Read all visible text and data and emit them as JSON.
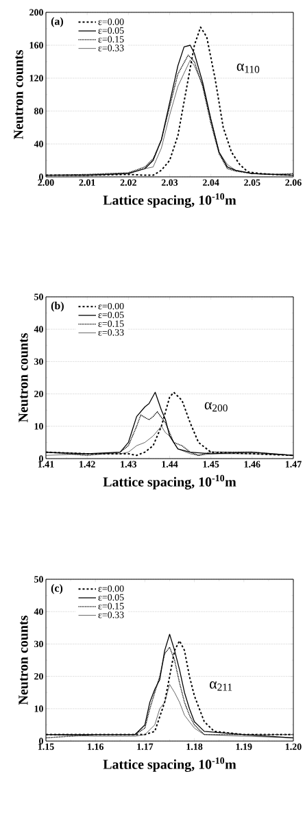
{
  "chart_data": [
    {
      "type": "line",
      "xlabel": "Lattice spacing, 10$^{-10}$m",
      "ylabel": "Neutron counts",
      "xlim": [
        2.0,
        2.06
      ],
      "xticks": [
        {
          "value": 2.0,
          "label": "2.00"
        },
        {
          "value": 2.01,
          "label": "2.01"
        },
        {
          "value": 2.02,
          "label": "2.02"
        },
        {
          "value": 2.03,
          "label": "2.03"
        },
        {
          "value": 2.04,
          "label": "2.04"
        },
        {
          "value": 2.05,
          "label": "2.05"
        },
        {
          "value": 2.06,
          "label": "2.06"
        }
      ],
      "ylim": [
        0,
        200
      ],
      "yticks": [
        0,
        40,
        80,
        120,
        160,
        200
      ],
      "grid": "y",
      "legend": "top left",
      "marker": "none",
      "annotations": [
        "(a)",
        "α$_{110}$"
      ],
      "series": [
        {
          "name": "ε=0.00",
          "color": "#000000",
          "line_style": "dashed",
          "x": [
            2.0,
            2.01,
            2.02,
            2.024,
            2.026,
            2.028,
            2.03,
            2.032,
            2.034,
            2.036,
            2.0375,
            2.039,
            2.041,
            2.043,
            2.045,
            2.047,
            2.049,
            2.052,
            2.055,
            2.06
          ],
          "values": [
            2,
            2,
            3,
            2,
            2,
            8,
            20,
            50,
            105,
            160,
            182,
            170,
            120,
            60,
            30,
            15,
            6,
            4,
            3,
            2
          ]
        },
        {
          "name": "ε=0.05",
          "color": "#000000",
          "line_style": "solid",
          "x": [
            2.0,
            2.01,
            2.02,
            2.024,
            2.026,
            2.028,
            2.03,
            2.032,
            2.0335,
            2.035,
            2.036,
            2.038,
            2.04,
            2.042,
            2.044,
            2.046,
            2.05,
            2.055,
            2.06
          ],
          "values": [
            2,
            2,
            4,
            10,
            20,
            45,
            90,
            135,
            158,
            160,
            150,
            115,
            70,
            30,
            12,
            8,
            4,
            3,
            2
          ]
        },
        {
          "name": "ε=0.15",
          "color": "#000000",
          "line_style": "dotted",
          "x": [
            2.0,
            2.01,
            2.02,
            2.024,
            2.026,
            2.028,
            2.03,
            2.032,
            2.0345,
            2.036,
            2.038,
            2.04,
            2.042,
            2.044,
            2.046,
            2.05,
            2.055,
            2.06
          ],
          "values": [
            2,
            3,
            5,
            12,
            22,
            45,
            85,
            125,
            148,
            140,
            110,
            65,
            28,
            10,
            7,
            4,
            3,
            4
          ]
        },
        {
          "name": "ε=0.33",
          "color": "#000000",
          "line_style": "solid",
          "x": [
            2.0,
            2.01,
            2.02,
            2.024,
            2.026,
            2.028,
            2.03,
            2.032,
            2.035,
            2.036,
            2.038,
            2.04,
            2.042,
            2.044,
            2.046,
            2.05,
            2.055,
            2.06
          ],
          "values": [
            2,
            2,
            4,
            10,
            12,
            35,
            75,
            110,
            142,
            135,
            112,
            70,
            30,
            15,
            8,
            4,
            3,
            2
          ]
        }
      ]
    },
    {
      "type": "line",
      "xlabel": "Lattice spacing, 10$^{-10}$m",
      "ylabel": "Neutron counts",
      "xlim": [
        1.41,
        1.47
      ],
      "xticks": [
        1.41,
        1.42,
        1.43,
        1.44,
        1.45,
        1.46,
        1.47
      ],
      "ylim": [
        0,
        50
      ],
      "yticks": [
        0,
        10,
        20,
        30,
        40,
        50
      ],
      "grid": "y",
      "legend": "top left",
      "marker": "none",
      "annotations": [
        "(b)",
        "α$_{200}$"
      ],
      "series": [
        {
          "name": "ε=0.00",
          "color": "#000000",
          "line_style": "dashed",
          "x": [
            1.41,
            1.42,
            1.43,
            1.432,
            1.434,
            1.436,
            1.438,
            1.44,
            1.441,
            1.443,
            1.445,
            1.447,
            1.449,
            1.45,
            1.46,
            1.47
          ],
          "values": [
            2,
            1.5,
            1.5,
            1,
            2,
            4,
            10,
            19,
            20.5,
            18,
            11,
            5,
            3,
            2,
            1.5,
            1
          ]
        },
        {
          "name": "ε=0.05",
          "color": "#000000",
          "line_style": "solid",
          "x": [
            1.41,
            1.42,
            1.428,
            1.43,
            1.431,
            1.432,
            1.434,
            1.435,
            1.4365,
            1.438,
            1.439,
            1.44,
            1.442,
            1.445,
            1.45,
            1.46,
            1.47
          ],
          "values": [
            2,
            1.5,
            2,
            5,
            9,
            13,
            16,
            17,
            20.5,
            15,
            12,
            7,
            3,
            2,
            1.5,
            2,
            1
          ]
        },
        {
          "name": "ε=0.15",
          "color": "#000000",
          "line_style": "dotted",
          "x": [
            1.41,
            1.42,
            1.428,
            1.43,
            1.432,
            1.433,
            1.435,
            1.436,
            1.437,
            1.439,
            1.441,
            1.443,
            1.445,
            1.447,
            1.45,
            1.46,
            1.47
          ],
          "values": [
            2,
            1,
            2,
            4,
            10,
            13.5,
            12,
            13,
            14.5,
            11,
            5,
            4,
            2,
            1,
            2,
            2,
            1
          ]
        },
        {
          "name": "ε=0.33",
          "color": "#000000",
          "line_style": "solid",
          "x": [
            1.41,
            1.42,
            1.428,
            1.43,
            1.432,
            1.434,
            1.436,
            1.438,
            1.439,
            1.44,
            1.442,
            1.445,
            1.447,
            1.45,
            1.46,
            1.47
          ],
          "values": [
            1,
            1.5,
            1.5,
            2,
            4,
            5,
            7,
            10,
            8,
            7,
            3,
            1.5,
            1,
            1.5,
            1.5,
            1
          ]
        }
      ]
    },
    {
      "type": "line",
      "xlabel": "Lattice spacing, 10$^{-10}$m",
      "ylabel": "Neutron counts",
      "xlim": [
        1.15,
        1.2
      ],
      "xticks": [
        {
          "value": 1.15,
          "label": "1.15"
        },
        {
          "value": 1.16,
          "label": "1.16"
        },
        {
          "value": 1.17,
          "label": "1.17"
        },
        {
          "value": 1.18,
          "label": "1.18"
        },
        {
          "value": 1.19,
          "label": "1.19"
        },
        {
          "value": 1.2,
          "label": "1.20"
        }
      ],
      "ylim": [
        0,
        50
      ],
      "yticks": [
        0,
        10,
        20,
        30,
        40,
        50
      ],
      "grid": "y",
      "legend": "top left",
      "marker": "none",
      "annotations": [
        "(c)",
        "α$_{211}$"
      ],
      "series": [
        {
          "name": "ε=0.00",
          "color": "#000000",
          "line_style": "dashed",
          "x": [
            1.15,
            1.16,
            1.17,
            1.172,
            1.174,
            1.175,
            1.176,
            1.177,
            1.178,
            1.179,
            1.18,
            1.182,
            1.184,
            1.19,
            1.2
          ],
          "values": [
            2,
            2,
            2,
            3,
            12,
            20,
            28,
            31,
            28,
            20,
            14,
            6,
            3,
            2,
            2
          ]
        },
        {
          "name": "ε=0.05",
          "color": "#000000",
          "line_style": "solid",
          "x": [
            1.15,
            1.16,
            1.168,
            1.17,
            1.171,
            1.172,
            1.173,
            1.174,
            1.175,
            1.176,
            1.177,
            1.178,
            1.179,
            1.18,
            1.182,
            1.19,
            1.2
          ],
          "values": [
            2,
            2,
            2,
            5,
            12,
            16,
            19,
            28,
            33,
            28,
            22,
            15,
            10,
            6,
            3,
            2,
            1
          ]
        },
        {
          "name": "ε=0.15",
          "color": "#000000",
          "line_style": "dotted",
          "x": [
            1.15,
            1.16,
            1.168,
            1.17,
            1.171,
            1.172,
            1.173,
            1.174,
            1.175,
            1.176,
            1.177,
            1.178,
            1.179,
            1.18,
            1.182,
            1.19,
            1.2
          ],
          "values": [
            1,
            2,
            2,
            4,
            10,
            15,
            20,
            27,
            29,
            25,
            18,
            12,
            8,
            5,
            2,
            2,
            2
          ]
        },
        {
          "name": "ε=0.33",
          "color": "#000000",
          "line_style": "solid",
          "x": [
            1.15,
            1.16,
            1.168,
            1.17,
            1.172,
            1.173,
            1.174,
            1.175,
            1.176,
            1.177,
            1.178,
            1.18,
            1.182,
            1.19,
            1.2
          ],
          "values": [
            2,
            1.5,
            1.5,
            2,
            5,
            10,
            12,
            17.5,
            15,
            12,
            8,
            4,
            2,
            1.5,
            1
          ]
        }
      ]
    }
  ]
}
